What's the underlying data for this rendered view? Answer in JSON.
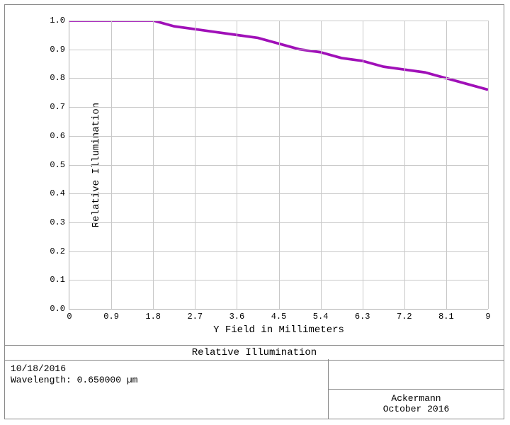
{
  "chart": {
    "type": "line",
    "xlabel": "Y Field in Millimeters",
    "ylabel": "Relative Illumination",
    "xlim": [
      0,
      9
    ],
    "ylim": [
      0,
      1.0
    ],
    "xtick_step": 0.9,
    "ytick_step": 0.1,
    "xticks": [
      "0",
      "0.9",
      "1.8",
      "2.7",
      "3.6",
      "4.5",
      "5.4",
      "6.3",
      "7.2",
      "8.1",
      "9"
    ],
    "yticks": [
      "0.0",
      "0.1",
      "0.2",
      "0.3",
      "0.4",
      "0.5",
      "0.6",
      "0.7",
      "0.8",
      "0.9",
      "1.0"
    ],
    "grid_color": "#c8c8c8",
    "axis_color": "#b0b0b0",
    "background_color": "#ffffff",
    "tick_fontsize": 12,
    "label_fontsize": 14,
    "series": [
      {
        "name": "relative-illumination",
        "color": "#a010b8",
        "line_width": 2.2,
        "x": [
          0.0,
          0.45,
          0.9,
          1.35,
          1.8,
          2.25,
          2.7,
          3.15,
          3.6,
          4.05,
          4.5,
          4.95,
          5.4,
          5.85,
          6.3,
          6.75,
          7.2,
          7.65,
          8.1,
          8.55,
          9.0
        ],
        "y": [
          1.0,
          1.0,
          1.0,
          1.0,
          1.0,
          0.98,
          0.97,
          0.96,
          0.95,
          0.94,
          0.92,
          0.9,
          0.89,
          0.87,
          0.86,
          0.84,
          0.83,
          0.82,
          0.8,
          0.78,
          0.76
        ]
      }
    ]
  },
  "footer": {
    "title": "Relative Illumination",
    "date": "10/18/2016",
    "wavelength_line": "Wavelength: 0.650000 µm",
    "credit_name": "Ackermann",
    "credit_date": "October 2016"
  }
}
